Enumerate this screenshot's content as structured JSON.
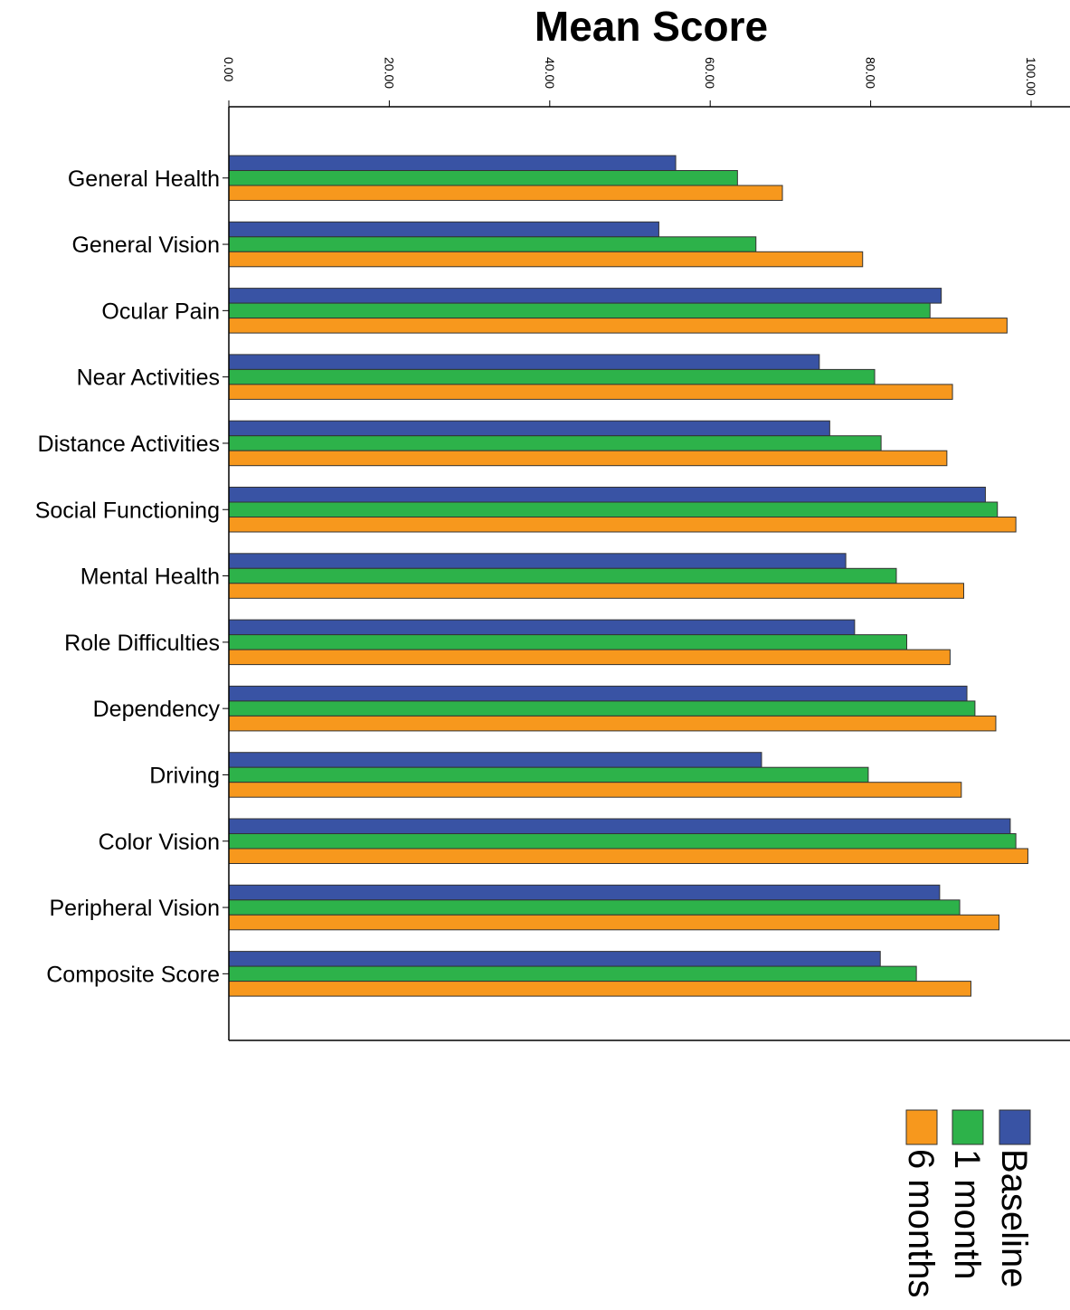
{
  "chart_data": {
    "type": "bar",
    "orientation": "horizontal",
    "title": "Mean Score",
    "xlabel": "",
    "ylabel": "",
    "xlim": [
      0,
      100
    ],
    "x_ticks": [
      "0.00",
      "20.00",
      "40.00",
      "60.00",
      "80.00",
      "100.00"
    ],
    "grid": false,
    "legend_position": "bottom-right",
    "categories": [
      "General Health",
      "General Vision",
      "Ocular Pain",
      "Near Activities",
      "Distance Activities",
      "Social Functioning",
      "Mental Health",
      "Role Difficulties",
      "Dependency",
      "Driving",
      "Color Vision",
      "Peripheral Vision",
      "Composite Score"
    ],
    "series": [
      {
        "name": "Baseline",
        "color": "#3953a4",
        "values": [
          55.7,
          53.6,
          88.8,
          73.6,
          74.9,
          94.3,
          76.9,
          78.0,
          92.0,
          66.4,
          97.4,
          88.6,
          81.2
        ]
      },
      {
        "name": "1 month",
        "color": "#2db24a",
        "values": [
          63.4,
          65.7,
          87.4,
          80.5,
          81.3,
          95.8,
          83.2,
          84.5,
          93.0,
          79.7,
          98.1,
          91.1,
          85.7
        ]
      },
      {
        "name": "6 months",
        "color": "#f7981d",
        "values": [
          69.0,
          79.0,
          97.0,
          90.2,
          89.5,
          98.1,
          91.6,
          89.9,
          95.6,
          91.3,
          99.6,
          96.0,
          92.5
        ]
      }
    ]
  }
}
